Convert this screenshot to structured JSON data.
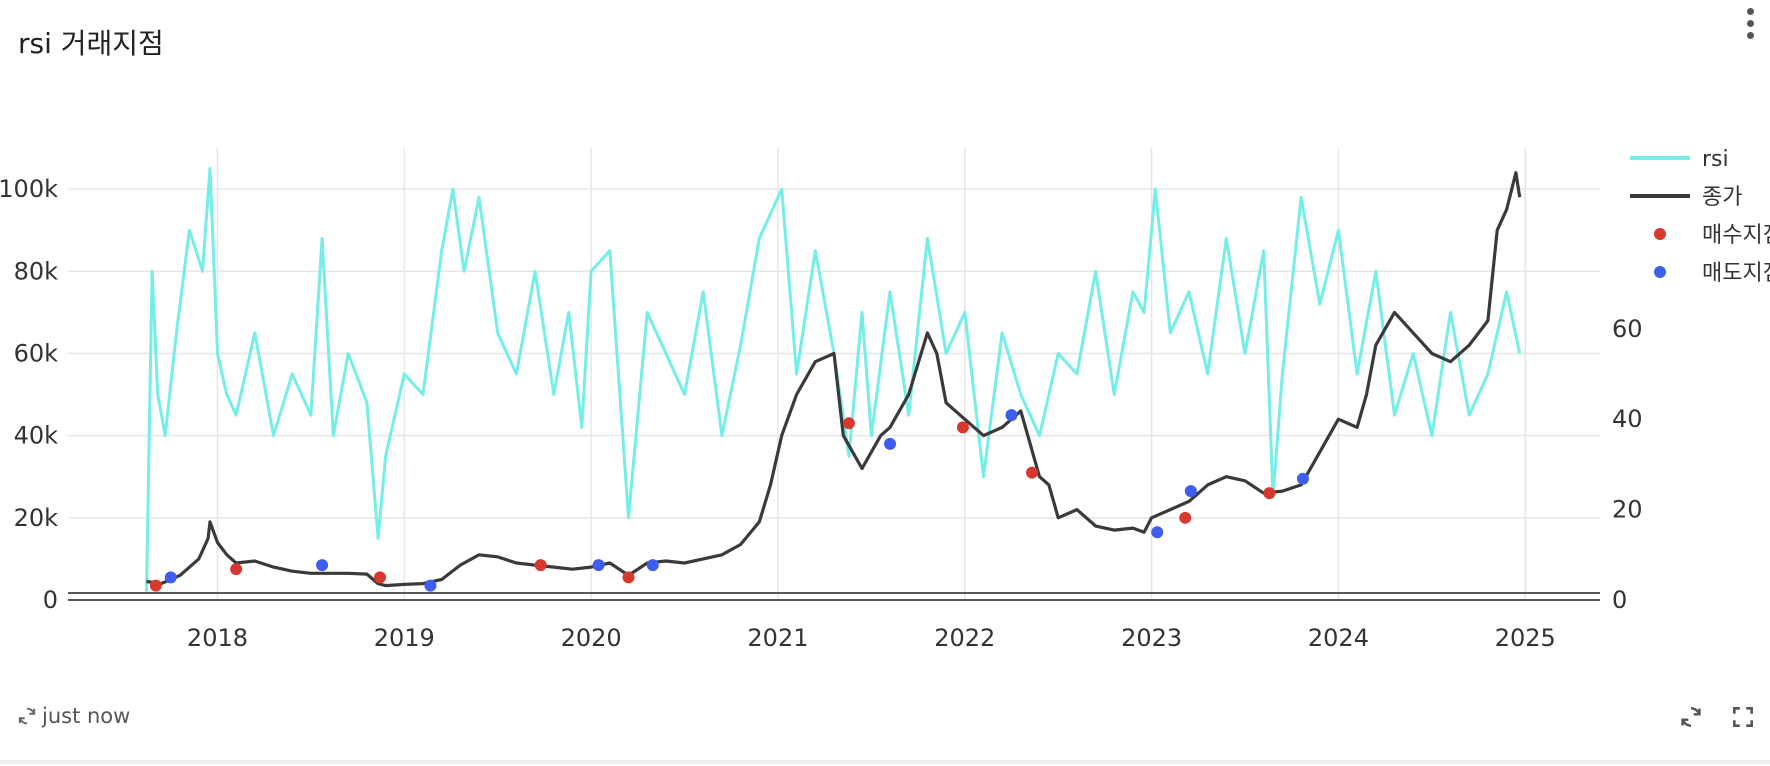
{
  "card": {
    "title": "rsi 거래지점",
    "refresh_status": "just now",
    "icons": {
      "menu": "kebab-menu-icon",
      "refresh": "refresh-icon",
      "fullscreen": "fullscreen-icon"
    }
  },
  "chart_data": {
    "type": "line",
    "title": "",
    "xlabel": "",
    "ylabel": "",
    "x_ticks": [
      "2018",
      "2019",
      "2020",
      "2021",
      "2022",
      "2023",
      "2024",
      "2025"
    ],
    "x_range": [
      2017.2,
      2025.4
    ],
    "y_left": {
      "range": [
        0,
        110000
      ],
      "ticks": [
        0,
        20000,
        40000,
        60000,
        80000,
        100000
      ],
      "tick_labels": [
        "0",
        "20k",
        "40k",
        "60k",
        "80k",
        "100k"
      ]
    },
    "y_right": {
      "visible_ticks": [
        0,
        20,
        40,
        60
      ],
      "tick_labels": [
        "0",
        "20",
        "40",
        "60"
      ]
    },
    "grid": true,
    "legend_position": "top-right",
    "legend": [
      "rsi",
      "종가",
      "매수지점",
      "매도지점"
    ],
    "colors": {
      "rsi": "#74eee6",
      "close": "#3a3a3a",
      "buy": "#d63a2f",
      "sell": "#3f5ef0"
    },
    "series": [
      {
        "name": "rsi",
        "axis": "left",
        "style": "line",
        "color": "#74eee6",
        "x": [
          2017.62,
          2017.65,
          2017.68,
          2017.72,
          2017.78,
          2017.85,
          2017.92,
          2017.96,
          2018.0,
          2018.05,
          2018.1,
          2018.2,
          2018.3,
          2018.4,
          2018.5,
          2018.56,
          2018.62,
          2018.7,
          2018.8,
          2018.86,
          2018.9,
          2019.0,
          2019.1,
          2019.2,
          2019.26,
          2019.32,
          2019.4,
          2019.5,
          2019.6,
          2019.7,
          2019.8,
          2019.88,
          2019.95,
          2020.0,
          2020.1,
          2020.2,
          2020.3,
          2020.4,
          2020.5,
          2020.6,
          2020.7,
          2020.8,
          2020.9,
          2021.02,
          2021.1,
          2021.2,
          2021.3,
          2021.38,
          2021.45,
          2021.5,
          2021.6,
          2021.7,
          2021.8,
          2021.9,
          2022.0,
          2022.1,
          2022.2,
          2022.3,
          2022.4,
          2022.5,
          2022.6,
          2022.7,
          2022.8,
          2022.9,
          2022.96,
          2023.02,
          2023.1,
          2023.2,
          2023.3,
          2023.4,
          2023.5,
          2023.6,
          2023.65,
          2023.7,
          2023.8,
          2023.9,
          2024.0,
          2024.1,
          2024.2,
          2024.3,
          2024.4,
          2024.5,
          2024.6,
          2024.7,
          2024.8,
          2024.9,
          2024.97
        ],
        "y": [
          2000,
          80000,
          50000,
          40000,
          65000,
          90000,
          80000,
          105000,
          60000,
          50000,
          45000,
          65000,
          40000,
          55000,
          45000,
          88000,
          40000,
          60000,
          48000,
          15000,
          35000,
          55000,
          50000,
          85000,
          100000,
          80000,
          98000,
          65000,
          55000,
          80000,
          50000,
          70000,
          42000,
          80000,
          85000,
          20000,
          70000,
          60000,
          50000,
          75000,
          40000,
          62000,
          88000,
          100000,
          55000,
          85000,
          60000,
          35000,
          70000,
          40000,
          75000,
          45000,
          88000,
          60000,
          70000,
          30000,
          65000,
          50000,
          40000,
          60000,
          55000,
          80000,
          50000,
          75000,
          70000,
          100000,
          65000,
          75000,
          55000,
          88000,
          60000,
          85000,
          25000,
          55000,
          98000,
          72000,
          90000,
          55000,
          80000,
          45000,
          60000,
          40000,
          70000,
          45000,
          55000,
          75000,
          60000
        ]
      },
      {
        "name": "종가",
        "axis": "left",
        "style": "line",
        "color": "#3a3a3a",
        "x": [
          2017.62,
          2017.7,
          2017.8,
          2017.9,
          2017.95,
          2017.96,
          2018.0,
          2018.05,
          2018.1,
          2018.2,
          2018.3,
          2018.4,
          2018.5,
          2018.6,
          2018.7,
          2018.8,
          2018.86,
          2018.9,
          2019.0,
          2019.1,
          2019.2,
          2019.3,
          2019.4,
          2019.5,
          2019.6,
          2019.7,
          2019.8,
          2019.9,
          2020.0,
          2020.1,
          2020.2,
          2020.3,
          2020.4,
          2020.5,
          2020.6,
          2020.7,
          2020.8,
          2020.9,
          2020.96,
          2021.02,
          2021.1,
          2021.2,
          2021.3,
          2021.35,
          2021.45,
          2021.55,
          2021.6,
          2021.7,
          2021.8,
          2021.85,
          2021.9,
          2022.0,
          2022.1,
          2022.2,
          2022.3,
          2022.4,
          2022.45,
          2022.5,
          2022.6,
          2022.7,
          2022.8,
          2022.9,
          2022.96,
          2023.0,
          2023.1,
          2023.2,
          2023.3,
          2023.4,
          2023.5,
          2023.6,
          2023.7,
          2023.8,
          2023.9,
          2024.0,
          2024.1,
          2024.15,
          2024.2,
          2024.3,
          2024.4,
          2024.5,
          2024.6,
          2024.7,
          2024.8,
          2024.85,
          2024.9,
          2024.95,
          2024.97
        ],
        "y": [
          4500,
          4000,
          6000,
          10000,
          15000,
          19000,
          14000,
          11000,
          9000,
          9500,
          8000,
          7000,
          6500,
          6500,
          6500,
          6300,
          4000,
          3500,
          3800,
          4000,
          5000,
          8500,
          11000,
          10500,
          9000,
          8500,
          8000,
          7500,
          8000,
          9000,
          6000,
          9000,
          9500,
          9000,
          10000,
          11000,
          13500,
          19000,
          28000,
          40000,
          50000,
          58000,
          60000,
          40000,
          32000,
          40000,
          42000,
          50000,
          65000,
          60000,
          48000,
          44000,
          40000,
          42000,
          46000,
          30000,
          28000,
          20000,
          22000,
          18000,
          17000,
          17500,
          16500,
          20000,
          22000,
          24000,
          28000,
          30000,
          29000,
          26000,
          26500,
          28000,
          36000,
          44000,
          42000,
          50000,
          62000,
          70000,
          65000,
          60000,
          58000,
          62000,
          68000,
          90000,
          95000,
          104000,
          98000
        ]
      },
      {
        "name": "매수지점",
        "axis": "left",
        "style": "markers",
        "color": "#d63a2f",
        "x": [
          2017.67,
          2018.1,
          2018.87,
          2019.73,
          2020.2,
          2021.38,
          2021.99,
          2022.36,
          2023.18,
          2023.63
        ],
        "y": [
          3500,
          7500,
          5500,
          8500,
          5500,
          43000,
          42000,
          31000,
          20000,
          26000
        ]
      },
      {
        "name": "매도지점",
        "axis": "left",
        "style": "markers",
        "color": "#3f5ef0",
        "x": [
          2017.75,
          2018.56,
          2019.14,
          2020.04,
          2020.33,
          2021.6,
          2022.25,
          2023.03,
          2023.21,
          2023.81
        ],
        "y": [
          5500,
          8500,
          3500,
          8500,
          8500,
          38000,
          45000,
          16500,
          26500,
          29500
        ]
      }
    ]
  }
}
